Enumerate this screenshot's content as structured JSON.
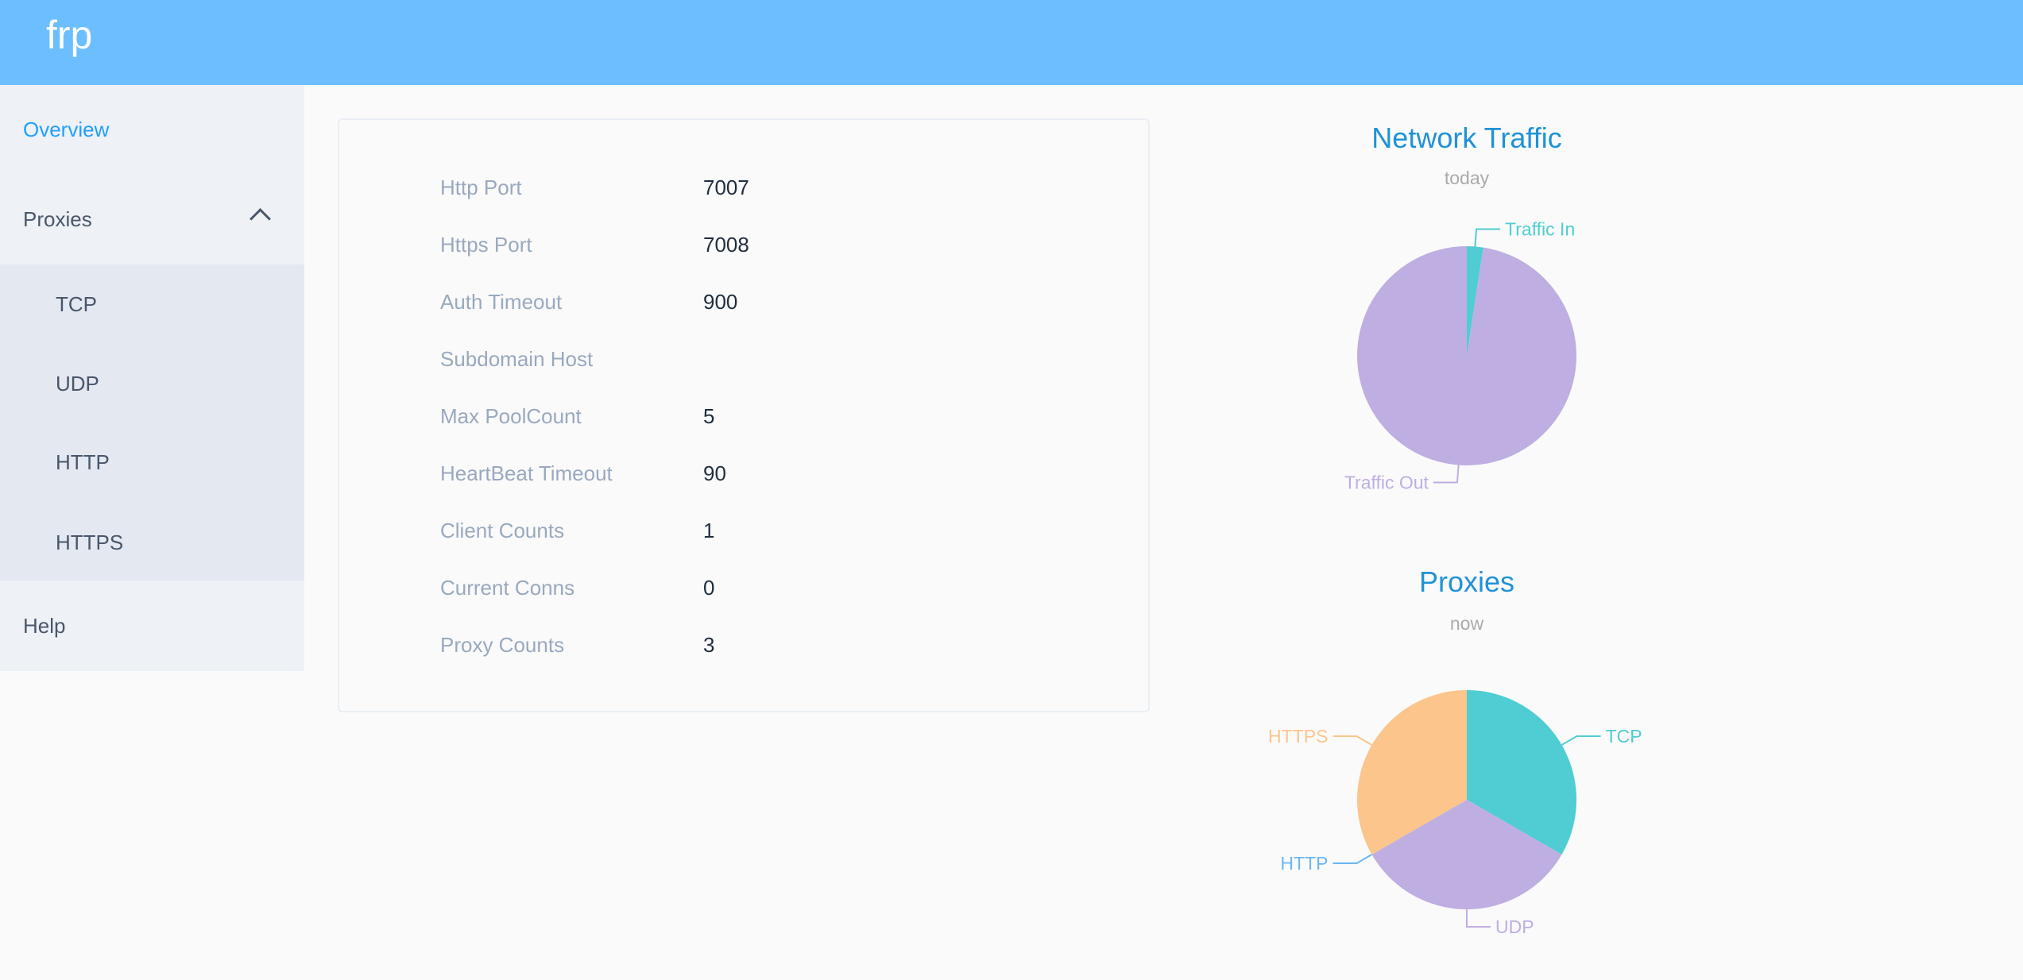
{
  "header": {
    "brand": "frp",
    "color": "#6dbefe"
  },
  "sidebar": {
    "overview": "Overview",
    "proxies": "Proxies",
    "proxies_icon": "chevron-up-icon",
    "sub_items": [
      "TCP",
      "UDP",
      "HTTP",
      "HTTPS"
    ],
    "help": "Help",
    "active_color": "#20a0ff"
  },
  "server_info": {
    "rows": [
      {
        "label": "Http Port",
        "value": "7007"
      },
      {
        "label": "Https Port",
        "value": "7008"
      },
      {
        "label": "Auth Timeout",
        "value": "900"
      },
      {
        "label": "Subdomain Host",
        "value": ""
      },
      {
        "label": "Max PoolCount",
        "value": "5"
      },
      {
        "label": "HeartBeat Timeout",
        "value": "90"
      },
      {
        "label": "Client Counts",
        "value": "1"
      },
      {
        "label": "Current Conns",
        "value": "0"
      },
      {
        "label": "Proxy Counts",
        "value": "3"
      }
    ]
  },
  "chart_data": [
    {
      "type": "pie",
      "title": "Network Traffic",
      "subtitle": "today",
      "categories": [
        "Traffic In",
        "Traffic Out"
      ],
      "values": [
        2.4,
        97.6
      ],
      "colors": [
        "#4fcdd2",
        "#bfaee1"
      ]
    },
    {
      "type": "pie",
      "title": "Proxies",
      "subtitle": "now",
      "categories": [
        "TCP",
        "UDP",
        "HTTP",
        "HTTPS"
      ],
      "values": [
        1,
        1,
        0,
        1
      ],
      "colors": [
        "#4fcdd2",
        "#bfaee1",
        "#6cb6f3",
        "#fbc58b"
      ]
    }
  ]
}
